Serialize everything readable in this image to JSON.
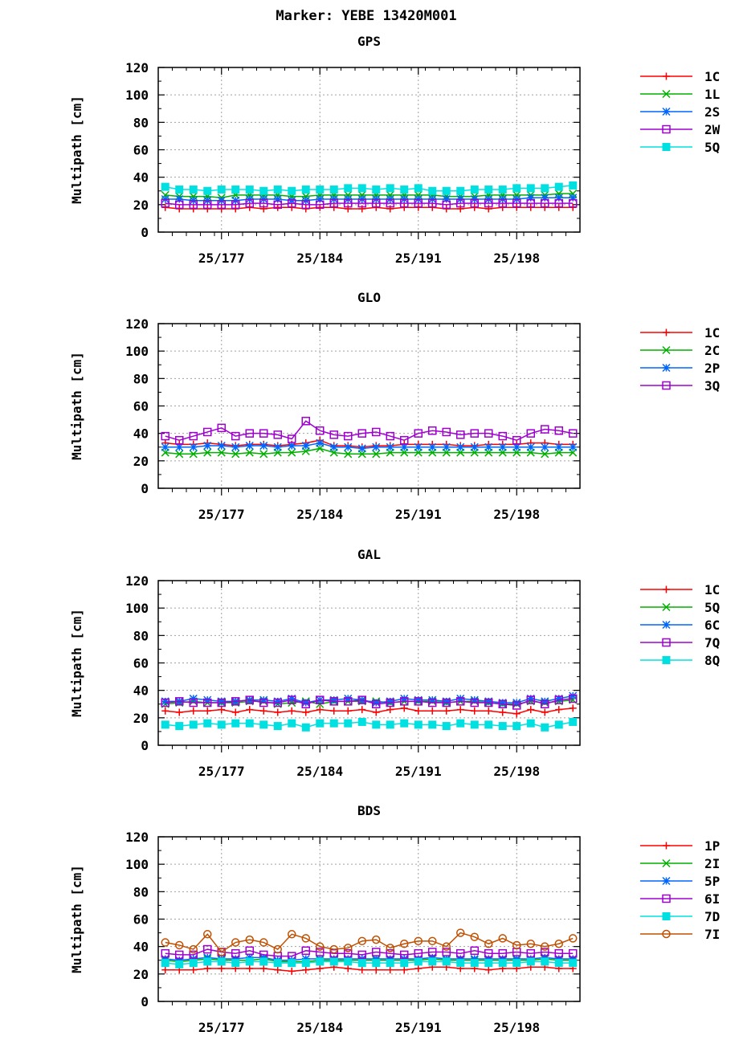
{
  "title": "Marker: YEBE 13420M001",
  "chart_data": [
    {
      "type": "line",
      "title": "GPS",
      "ylabel": "Multipath [cm]",
      "ylim": [
        0,
        120
      ],
      "yticks": [
        0,
        20,
        40,
        60,
        80,
        100,
        120
      ],
      "xlim": [
        172,
        202
      ],
      "xticks": [
        {
          "x": 176.5,
          "label": "25/177"
        },
        {
          "x": 183.5,
          "label": "25/184"
        },
        {
          "x": 190.5,
          "label": "25/191"
        },
        {
          "x": 197.5,
          "label": "25/198"
        }
      ],
      "grid": true,
      "legend": "right",
      "series": [
        {
          "name": "1C",
          "color": "#ff0000",
          "marker": "plus",
          "values": [
            18,
            17,
            17,
            17,
            17,
            17,
            18,
            17,
            18,
            18,
            17,
            18,
            18,
            17,
            17,
            18,
            17,
            18,
            18,
            18,
            17,
            17,
            18,
            17,
            18,
            18,
            18,
            18,
            18,
            18
          ]
        },
        {
          "name": "1L",
          "color": "#00b000",
          "marker": "x",
          "values": [
            27,
            26,
            26,
            26,
            25,
            27,
            27,
            27,
            27,
            26,
            26,
            27,
            27,
            27,
            27,
            27,
            27,
            27,
            27,
            27,
            26,
            26,
            26,
            27,
            27,
            27,
            27,
            27,
            28,
            28
          ]
        },
        {
          "name": "2S",
          "color": "#0066ff",
          "marker": "asterisk",
          "values": [
            24,
            24,
            23,
            23,
            23,
            23,
            24,
            24,
            24,
            23,
            23,
            24,
            24,
            24,
            24,
            24,
            24,
            24,
            24,
            24,
            24,
            24,
            24,
            24,
            24,
            24,
            25,
            25,
            25,
            25
          ]
        },
        {
          "name": "2W",
          "color": "#a000d0",
          "marker": "square",
          "values": [
            21,
            20,
            20,
            20,
            20,
            20,
            21,
            21,
            20,
            21,
            20,
            20,
            21,
            21,
            21,
            21,
            21,
            21,
            21,
            21,
            20,
            21,
            21,
            21,
            21,
            21,
            21,
            21,
            21,
            21
          ]
        },
        {
          "name": "5Q",
          "color": "#00e0e0",
          "marker": "filled-square",
          "values": [
            33,
            31,
            31,
            30,
            31,
            31,
            31,
            30,
            31,
            30,
            31,
            31,
            31,
            32,
            32,
            31,
            32,
            31,
            32,
            30,
            30,
            30,
            31,
            31,
            31,
            32,
            32,
            32,
            33,
            34
          ]
        }
      ]
    },
    {
      "type": "line",
      "title": "GLO",
      "ylabel": "Multipath [cm]",
      "ylim": [
        0,
        120
      ],
      "yticks": [
        0,
        20,
        40,
        60,
        80,
        100,
        120
      ],
      "xlim": [
        172,
        202
      ],
      "xticks": [
        {
          "x": 176.5,
          "label": "25/177"
        },
        {
          "x": 183.5,
          "label": "25/184"
        },
        {
          "x": 190.5,
          "label": "25/191"
        },
        {
          "x": 197.5,
          "label": "25/198"
        }
      ],
      "grid": true,
      "legend": "right",
      "series": [
        {
          "name": "1C",
          "color": "#ff0000",
          "marker": "plus",
          "values": [
            33,
            32,
            32,
            33,
            32,
            31,
            32,
            32,
            31,
            32,
            33,
            35,
            31,
            31,
            30,
            31,
            31,
            32,
            32,
            32,
            32,
            31,
            31,
            32,
            32,
            32,
            33,
            33,
            32,
            32
          ]
        },
        {
          "name": "2C",
          "color": "#00b000",
          "marker": "x",
          "values": [
            26,
            25,
            25,
            26,
            26,
            25,
            26,
            25,
            26,
            26,
            27,
            29,
            26,
            25,
            25,
            25,
            26,
            26,
            26,
            26,
            26,
            26,
            26,
            26,
            26,
            26,
            26,
            25,
            26,
            26
          ]
        },
        {
          "name": "2P",
          "color": "#0066ff",
          "marker": "asterisk",
          "values": [
            30,
            30,
            30,
            31,
            31,
            30,
            31,
            31,
            30,
            31,
            31,
            33,
            30,
            30,
            29,
            30,
            30,
            30,
            30,
            30,
            30,
            30,
            30,
            30,
            30,
            30,
            30,
            30,
            30,
            30
          ]
        },
        {
          "name": "3Q",
          "color": "#a000d0",
          "marker": "square",
          "values": [
            38,
            35,
            38,
            41,
            44,
            38,
            40,
            40,
            39,
            36,
            49,
            42,
            39,
            38,
            40,
            41,
            38,
            35,
            40,
            42,
            41,
            39,
            40,
            40,
            38,
            35,
            40,
            43,
            42,
            40
          ]
        }
      ]
    },
    {
      "type": "line",
      "title": "GAL",
      "ylabel": "Multipath [cm]",
      "ylim": [
        0,
        120
      ],
      "yticks": [
        0,
        20,
        40,
        60,
        80,
        100,
        120
      ],
      "xlim": [
        172,
        202
      ],
      "xticks": [
        {
          "x": 176.5,
          "label": "25/177"
        },
        {
          "x": 183.5,
          "label": "25/184"
        },
        {
          "x": 190.5,
          "label": "25/191"
        },
        {
          "x": 197.5,
          "label": "25/198"
        }
      ],
      "grid": true,
      "legend": "right",
      "series": [
        {
          "name": "1C",
          "color": "#ff0000",
          "marker": "plus",
          "values": [
            25,
            24,
            25,
            25,
            26,
            24,
            26,
            25,
            24,
            25,
            24,
            26,
            25,
            25,
            26,
            24,
            26,
            27,
            25,
            25,
            25,
            26,
            25,
            25,
            24,
            23,
            26,
            24,
            26,
            27
          ]
        },
        {
          "name": "5Q",
          "color": "#00b000",
          "marker": "x",
          "values": [
            30,
            31,
            32,
            31,
            31,
            31,
            32,
            32,
            30,
            31,
            32,
            30,
            32,
            32,
            32,
            32,
            31,
            32,
            32,
            32,
            31,
            32,
            32,
            31,
            30,
            30,
            32,
            31,
            32,
            33
          ]
        },
        {
          "name": "6C",
          "color": "#0066ff",
          "marker": "asterisk",
          "values": [
            32,
            32,
            34,
            33,
            32,
            32,
            33,
            33,
            32,
            34,
            31,
            33,
            33,
            34,
            33,
            31,
            32,
            34,
            33,
            33,
            32,
            34,
            33,
            32,
            31,
            31,
            34,
            32,
            34,
            36
          ]
        },
        {
          "name": "7Q",
          "color": "#a000d0",
          "marker": "square",
          "values": [
            31,
            32,
            31,
            31,
            31,
            32,
            33,
            31,
            31,
            33,
            30,
            33,
            32,
            32,
            33,
            30,
            31,
            32,
            32,
            31,
            31,
            32,
            31,
            31,
            30,
            29,
            33,
            30,
            33,
            34
          ]
        },
        {
          "name": "8Q",
          "color": "#00e0e0",
          "marker": "filled-square",
          "values": [
            15,
            14,
            15,
            16,
            15,
            16,
            16,
            15,
            14,
            16,
            13,
            16,
            16,
            16,
            17,
            15,
            15,
            16,
            15,
            15,
            14,
            16,
            15,
            15,
            14,
            14,
            16,
            13,
            15,
            17
          ]
        }
      ]
    },
    {
      "type": "line",
      "title": "BDS",
      "ylabel": "Multipath [cm]",
      "ylim": [
        0,
        120
      ],
      "yticks": [
        0,
        20,
        40,
        60,
        80,
        100,
        120
      ],
      "xlim": [
        172,
        202
      ],
      "xticks": [
        {
          "x": 176.5,
          "label": "25/177"
        },
        {
          "x": 183.5,
          "label": "25/184"
        },
        {
          "x": 190.5,
          "label": "25/191"
        },
        {
          "x": 197.5,
          "label": "25/198"
        }
      ],
      "grid": true,
      "legend": "right",
      "series": [
        {
          "name": "1P",
          "color": "#ff0000",
          "marker": "plus",
          "values": [
            23,
            23,
            23,
            24,
            24,
            24,
            24,
            24,
            23,
            22,
            23,
            24,
            25,
            24,
            23,
            23,
            23,
            23,
            24,
            25,
            25,
            24,
            24,
            23,
            24,
            24,
            25,
            25,
            24,
            24
          ]
        },
        {
          "name": "2I",
          "color": "#00b000",
          "marker": "x",
          "values": [
            30,
            29,
            30,
            31,
            30,
            30,
            30,
            31,
            29,
            29,
            29,
            30,
            30,
            30,
            30,
            30,
            30,
            30,
            30,
            31,
            30,
            30,
            30,
            30,
            30,
            30,
            30,
            31,
            30,
            30
          ]
        },
        {
          "name": "5P",
          "color": "#0066ff",
          "marker": "asterisk",
          "values": [
            31,
            30,
            31,
            32,
            31,
            31,
            32,
            32,
            30,
            30,
            31,
            31,
            31,
            31,
            31,
            31,
            31,
            31,
            31,
            32,
            31,
            31,
            31,
            31,
            31,
            31,
            31,
            32,
            31,
            31
          ]
        },
        {
          "name": "6I",
          "color": "#a000d0",
          "marker": "square",
          "values": [
            35,
            34,
            34,
            38,
            36,
            35,
            37,
            34,
            33,
            33,
            37,
            36,
            35,
            35,
            34,
            36,
            35,
            34,
            35,
            36,
            36,
            35,
            37,
            35,
            35,
            36,
            35,
            36,
            35,
            35
          ]
        },
        {
          "name": "7D",
          "color": "#00e0e0",
          "marker": "filled-square",
          "values": [
            28,
            27,
            28,
            29,
            29,
            28,
            29,
            29,
            28,
            28,
            28,
            29,
            29,
            29,
            28,
            28,
            28,
            28,
            29,
            29,
            29,
            28,
            28,
            28,
            28,
            28,
            29,
            29,
            28,
            28
          ]
        },
        {
          "name": "7I",
          "color": "#c05000",
          "marker": "circle",
          "values": [
            43,
            41,
            38,
            49,
            36,
            43,
            45,
            43,
            38,
            49,
            46,
            40,
            38,
            39,
            44,
            45,
            39,
            42,
            44,
            44,
            40,
            50,
            47,
            42,
            46,
            41,
            42,
            40,
            42,
            46
          ]
        }
      ]
    }
  ]
}
